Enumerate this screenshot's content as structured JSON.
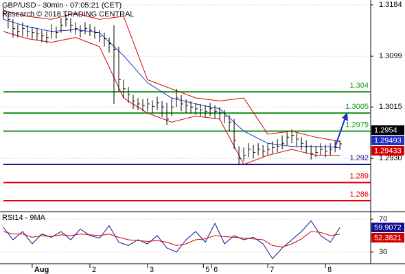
{
  "chart_data": [
    {
      "type": "ohlc",
      "title": "GBP/USD - 30min - 07:05:21 (CET)",
      "subtitle": "Research © 2018 TRADING CENTRAL",
      "color": "#000000",
      "high": [
        1.318,
        1.3172,
        1.316,
        1.3152,
        1.3155,
        1.315,
        1.3148,
        1.3146,
        1.3142,
        1.314,
        1.3152,
        1.3148,
        1.3162,
        1.3168,
        1.3162,
        1.3155,
        1.315,
        1.3155,
        1.3152,
        1.3148,
        1.3142,
        1.3138,
        1.313,
        1.315,
        1.3115,
        1.306,
        1.3048,
        1.3035,
        1.303,
        1.3028,
        1.303,
        1.3026,
        1.3032,
        1.3025,
        1.3022,
        1.303,
        1.3045,
        1.3035,
        1.3028,
        1.3025,
        1.3022,
        1.302,
        1.3018,
        1.3022,
        1.3018,
        1.3015,
        1.301,
        1.3002,
        1.2995,
        1.295,
        1.2948,
        1.2955,
        1.2952,
        1.2955,
        1.2952,
        1.2955,
        1.2958,
        1.2962,
        1.2968,
        1.2975,
        1.2978,
        1.2972,
        1.2965,
        1.296,
        1.2952,
        1.295,
        1.2955,
        1.2952,
        1.2955,
        1.296,
        1.296
      ],
      "low": [
        1.316,
        1.3145,
        1.313,
        1.313,
        1.3132,
        1.313,
        1.3128,
        1.3125,
        1.3122,
        1.312,
        1.3128,
        1.3128,
        1.3138,
        1.3148,
        1.3138,
        1.3135,
        1.313,
        1.3135,
        1.3132,
        1.3128,
        1.3122,
        1.3115,
        1.3105,
        1.302,
        1.304,
        1.303,
        1.3022,
        1.3012,
        1.301,
        1.3008,
        1.3008,
        1.3005,
        1.301,
        1.2998,
        1.2985,
        1.3,
        1.3015,
        1.3008,
        1.3005,
        1.3005,
        1.3002,
        1.3,
        1.2998,
        1.3,
        1.2996,
        1.2994,
        1.2988,
        1.2975,
        1.2945,
        1.292,
        1.2925,
        1.2932,
        1.293,
        1.2935,
        1.2932,
        1.2935,
        1.2938,
        1.294,
        1.2945,
        1.2952,
        1.2955,
        1.295,
        1.2944,
        1.2938,
        1.2928,
        1.2932,
        1.2935,
        1.2932,
        1.2935,
        1.294,
        1.2944
      ],
      "close": [
        1.317,
        1.316,
        1.3145,
        1.314,
        1.3145,
        1.314,
        1.3138,
        1.3136,
        1.3133,
        1.313,
        1.314,
        1.3138,
        1.315,
        1.316,
        1.315,
        1.3145,
        1.314,
        1.3145,
        1.3142,
        1.3138,
        1.3132,
        1.3128,
        1.312,
        1.311,
        1.306,
        1.3045,
        1.3035,
        1.3025,
        1.302,
        1.3018,
        1.302,
        1.3016,
        1.3022,
        1.3015,
        1.2995,
        1.3015,
        1.303,
        1.302,
        1.3018,
        1.3015,
        1.3012,
        1.301,
        1.3008,
        1.3012,
        1.3008,
        1.3005,
        1.3,
        1.299,
        1.296,
        1.293,
        1.2935,
        1.2945,
        1.294,
        1.2945,
        1.2942,
        1.2945,
        1.2948,
        1.295,
        1.2955,
        1.2965,
        1.2968,
        1.2962,
        1.2955,
        1.295,
        1.2938,
        1.294,
        1.2945,
        1.2942,
        1.2945,
        1.2948,
        1.2954
      ],
      "lines": [
        {
          "color": "#1f2fbf",
          "x": [
            0,
            5,
            10,
            15,
            20,
            25,
            30,
            35,
            40,
            45,
            50,
            55,
            60,
            65,
            70
          ],
          "values": [
            1.316,
            1.3148,
            1.314,
            1.3143,
            1.3138,
            1.31,
            1.3055,
            1.303,
            1.302,
            1.3012,
            1.2975,
            1.2955,
            1.295,
            1.295,
            1.2948
          ]
        },
        {
          "color": "#d40000",
          "x": [
            0,
            5,
            10,
            15,
            20,
            25,
            30,
            35,
            40,
            45,
            50,
            55,
            60,
            65,
            70
          ],
          "values": [
            1.3175,
            1.3165,
            1.316,
            1.317,
            1.316,
            1.3165,
            1.306,
            1.3045,
            1.303,
            1.3025,
            1.303,
            1.297,
            1.2975,
            1.2965,
            1.2958
          ]
        },
        {
          "color": "#d40000",
          "x": [
            0,
            5,
            10,
            15,
            20,
            25,
            30,
            35,
            40,
            45,
            50,
            55,
            60,
            65,
            70
          ],
          "values": [
            1.314,
            1.3128,
            1.3122,
            1.313,
            1.3115,
            1.303,
            1.3005,
            1.299,
            1.3,
            1.2995,
            1.292,
            1.2935,
            1.2945,
            1.2935,
            1.2935
          ]
        }
      ],
      "levels": [
        {
          "value": 1.304,
          "color": "#1a9a1a"
        },
        {
          "value": 1.3005,
          "color": "#1a9a1a"
        },
        {
          "value": 1.2975,
          "color": "#1a9a1a"
        },
        {
          "value": 1.292,
          "color": "#101090"
        },
        {
          "value": 1.289,
          "color": "#e00000"
        },
        {
          "value": 1.286,
          "color": "#e00000"
        }
      ],
      "price_labels": [
        {
          "label": "1.2954",
          "color": "#000000"
        },
        {
          "label": "1.29493",
          "color": "#1f2fbf"
        },
        {
          "label": "1.29433",
          "color": "#d40000"
        }
      ],
      "xlim": [
        -0.7,
        76.4
      ],
      "xticks": [
        {
          "value": 6,
          "label": "Aug"
        },
        {
          "value": 18,
          "label": "2"
        },
        {
          "value": 30,
          "label": "3"
        },
        {
          "value": 41.6,
          "label": "5"
        },
        {
          "value": 43.3,
          "label": "6"
        },
        {
          "value": 55,
          "label": "7"
        },
        {
          "value": 67,
          "label": "8"
        }
      ],
      "ylim": [
        1.2843,
        1.3192
      ],
      "yticks": [
        1.3184,
        1.3099,
        1.3015,
        {
          "value": 1.293,
          "label": "1.2930"
        }
      ],
      "grid": true
    },
    {
      "type": "line",
      "title": "RSI14 - 9MA",
      "lines": [
        {
          "color": "#101090",
          "x": [
            0,
            2,
            4,
            6,
            8,
            10,
            12,
            14,
            16,
            18,
            20,
            22,
            24,
            26,
            28,
            30,
            32,
            34,
            36,
            38,
            40,
            42,
            44,
            46,
            48,
            50,
            52,
            54,
            56,
            58,
            60,
            62,
            64,
            66,
            68,
            70
          ],
          "values": [
            60,
            45,
            55,
            40,
            52,
            48,
            55,
            45,
            58,
            50,
            47,
            62,
            42,
            38,
            45,
            40,
            50,
            35,
            30,
            45,
            55,
            42,
            65,
            40,
            50,
            45,
            48,
            40,
            22,
            35,
            45,
            55,
            68,
            50,
            42,
            60
          ]
        },
        {
          "color": "#d40000",
          "x": [
            0,
            2,
            4,
            6,
            8,
            10,
            12,
            14,
            16,
            18,
            20,
            22,
            24,
            26,
            28,
            30,
            32,
            34,
            36,
            38,
            40,
            42,
            44,
            46,
            48,
            50,
            52,
            54,
            56,
            58,
            60,
            62,
            64,
            66,
            68,
            70
          ],
          "values": [
            55,
            52,
            52,
            48,
            50,
            49,
            51,
            50,
            52,
            51,
            50,
            52,
            48,
            45,
            44,
            43,
            44,
            42,
            38,
            40,
            45,
            46,
            50,
            49,
            48,
            47,
            46,
            45,
            38,
            36,
            40,
            46,
            55,
            54,
            50,
            52
          ]
        }
      ],
      "price_labels": [
        {
          "label": "59.9072",
          "color": "#101090"
        },
        {
          "label": "52.3821",
          "color": "#d40000"
        }
      ],
      "xlim": [
        -0.7,
        76.4
      ],
      "ylim": [
        15.8,
        78.3
      ],
      "yticks": [
        70,
        30
      ],
      "grid": true
    }
  ]
}
